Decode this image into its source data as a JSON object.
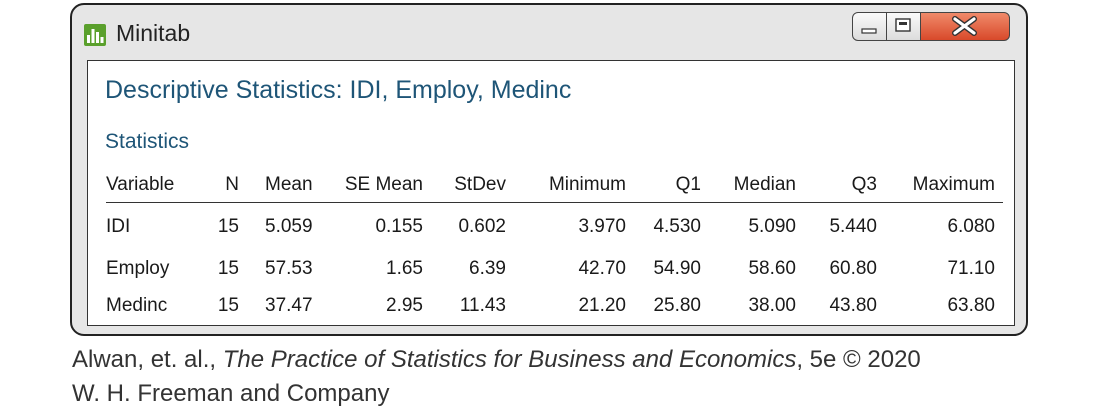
{
  "window": {
    "title": "Minitab",
    "controls": {
      "minimize": "minimize-icon",
      "maximize": "maximize-icon",
      "close": "close-icon"
    }
  },
  "output": {
    "heading": "Descriptive Statistics: IDI, Employ, Medinc",
    "section": "Statistics",
    "columns": [
      "Variable",
      "N",
      "Mean",
      "SE Mean",
      "StDev",
      "Minimum",
      "Q1",
      "Median",
      "Q3",
      "Maximum"
    ],
    "rows": [
      [
        "IDI",
        "15",
        "5.059",
        "0.155",
        "0.602",
        "3.970",
        "4.530",
        "5.090",
        "5.440",
        "6.080"
      ],
      [
        "Employ",
        "15",
        "57.53",
        "1.65",
        "6.39",
        "42.70",
        "54.90",
        "58.60",
        "60.80",
        "71.10"
      ],
      [
        "Medinc",
        "15",
        "37.47",
        "2.95",
        "11.43",
        "21.20",
        "25.80",
        "38.00",
        "43.80",
        "63.80"
      ]
    ]
  },
  "caption": {
    "line1_prefix": "Alwan, et. al., ",
    "line1_book": "The Practice of Statistics for Business and Economics",
    "line1_suffix": ", 5e © 2020",
    "line2": "W. H. Freeman and Company"
  },
  "colors": {
    "heading": "#1e5577",
    "logo": "#5aa02c",
    "close": "#d8492a"
  }
}
